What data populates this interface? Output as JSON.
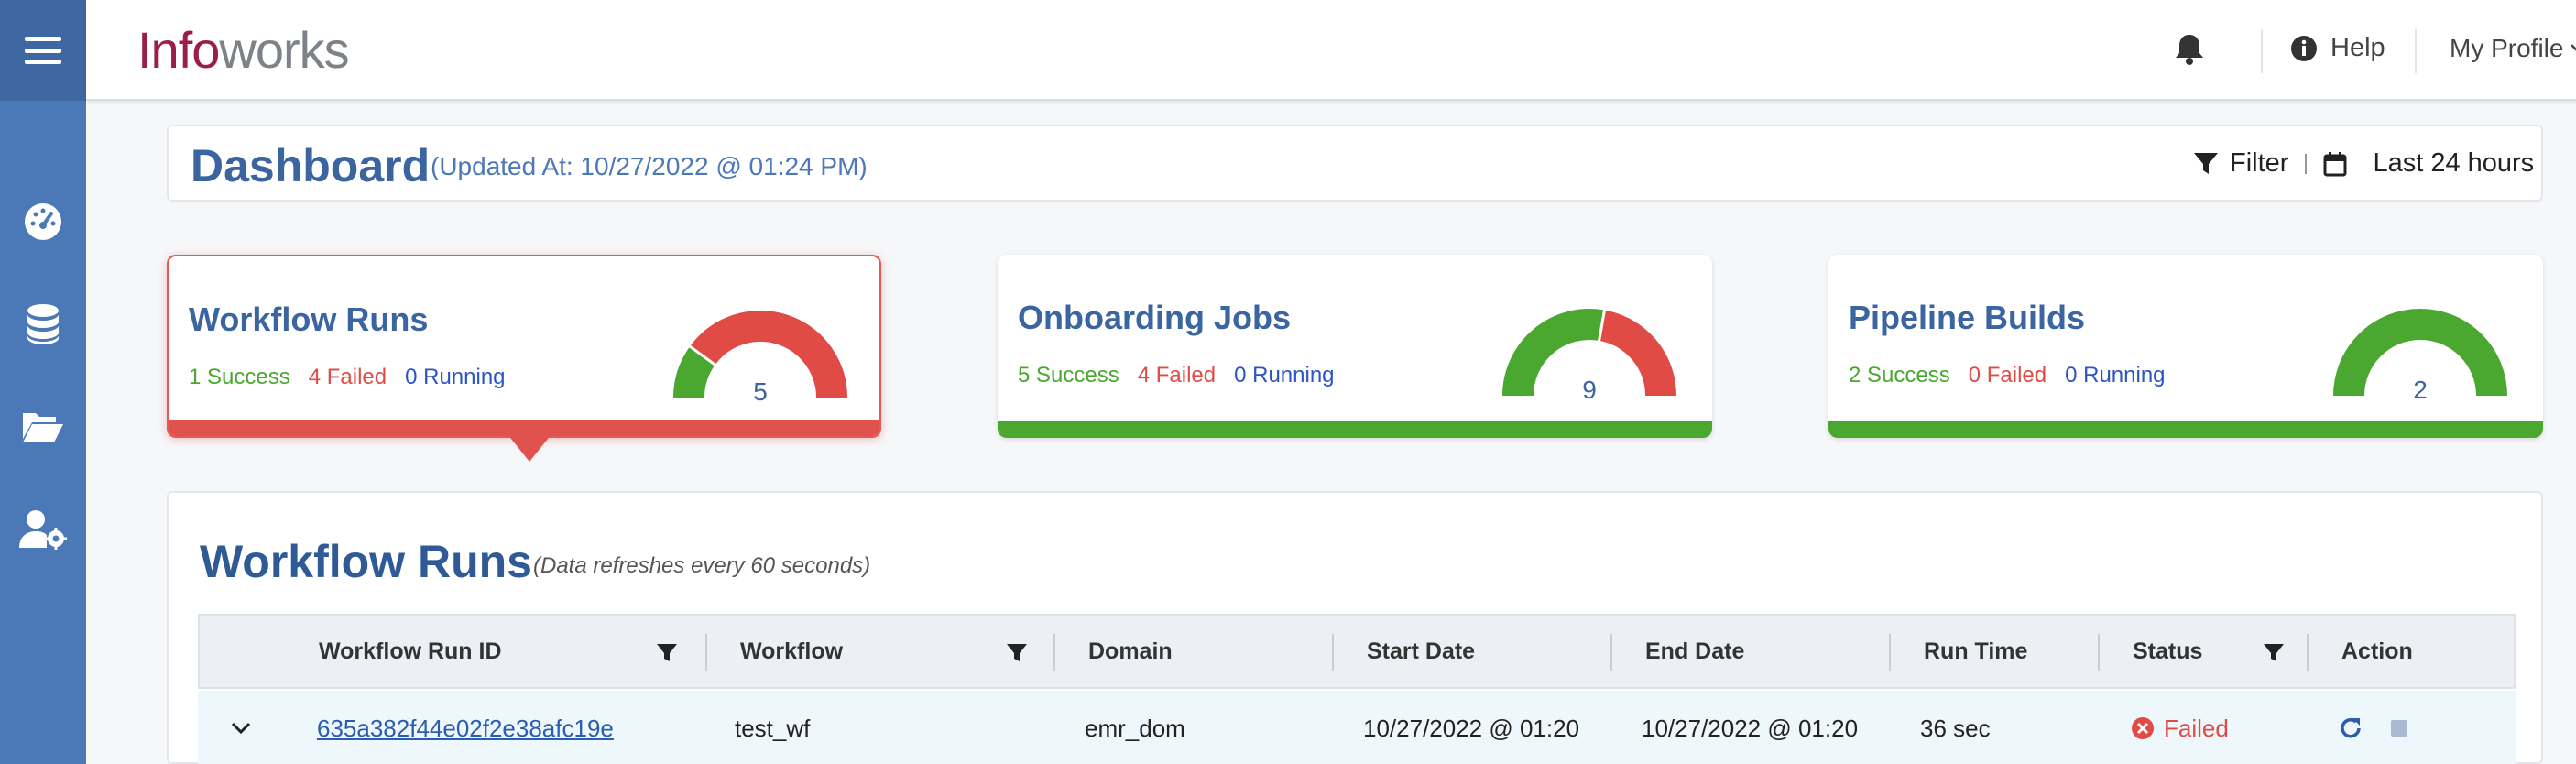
{
  "app": {
    "logo_part1": "Info",
    "logo_part2": "works"
  },
  "topbar": {
    "help_label": "Help",
    "profile_label": "My Profile"
  },
  "dashboard": {
    "title": "Dashboard",
    "updated": "(Updated At: 10/27/2022 @ 01:24 PM)",
    "filter_label": "Filter",
    "range_label": "Last 24 hours"
  },
  "cards": [
    {
      "title": "Workflow Runs",
      "success": "1 Success",
      "failed": "4 Failed",
      "running": "0 Running",
      "total": "5",
      "success_count": 1,
      "failed_count": 4,
      "running_count": 0,
      "active": true
    },
    {
      "title": "Onboarding Jobs",
      "success": "5 Success",
      "failed": "4 Failed",
      "running": "0 Running",
      "total": "9",
      "success_count": 5,
      "failed_count": 4,
      "running_count": 0,
      "active": false
    },
    {
      "title": "Pipeline Builds",
      "success": "2 Success",
      "failed": "0 Failed",
      "running": "0 Running",
      "total": "2",
      "success_count": 2,
      "failed_count": 0,
      "running_count": 0,
      "active": false
    }
  ],
  "colors": {
    "success": "#4aa72f",
    "failed": "#e14b45",
    "running": "#2b55c4",
    "sidebar": "#4b78b6",
    "brand": "#9b1e47"
  },
  "panel": {
    "title": "Workflow Runs",
    "note": "(Data refreshes every 60 seconds)",
    "columns": [
      "Workflow Run ID",
      "Workflow",
      "Domain",
      "Start Date",
      "End Date",
      "Run Time",
      "Status",
      "Action"
    ],
    "rows": [
      {
        "run_id": "635a382f44e02f2e38afc19e",
        "workflow": "test_wf",
        "domain": "emr_dom",
        "start": "10/27/2022 @ 01:20",
        "end": "10/27/2022 @ 01:20",
        "run_time": "36 sec",
        "status": "Failed"
      }
    ]
  },
  "icons": {
    "sidebar": [
      "dashboard-gauge-icon",
      "database-icon",
      "folder-open-icon",
      "user-settings-icon"
    ],
    "topbar": [
      "bell-icon",
      "info-icon",
      "chevron-down-icon"
    ]
  }
}
